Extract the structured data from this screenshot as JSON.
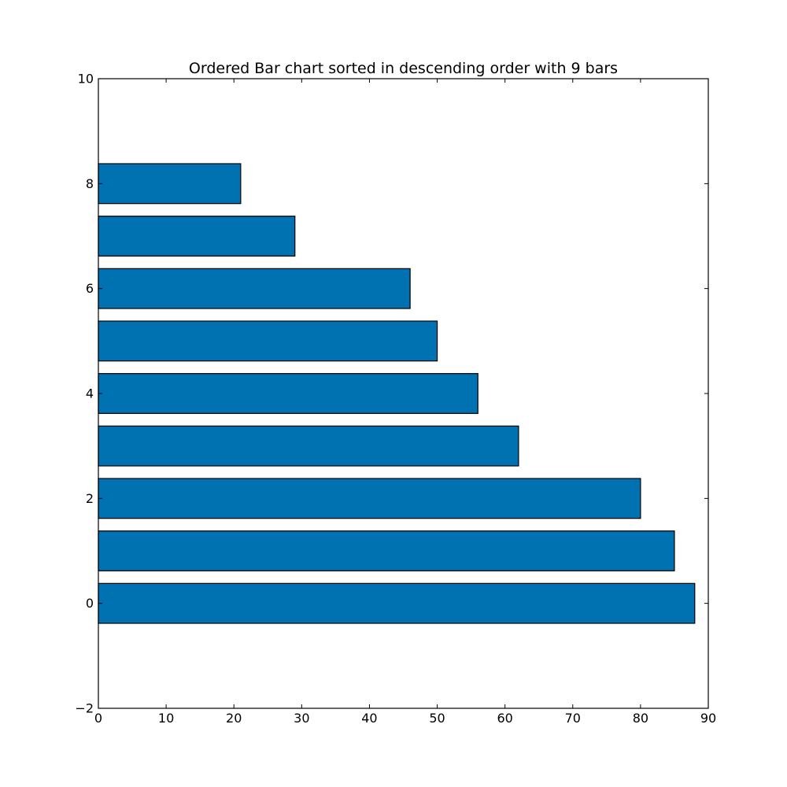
{
  "chart_data": {
    "type": "bar",
    "orientation": "horizontal",
    "title": "Ordered Bar chart sorted in descending order with 9 bars",
    "xlabel": "",
    "ylabel": "",
    "xlim": [
      0,
      90
    ],
    "ylim": [
      -2,
      10
    ],
    "bar_height": 0.76,
    "bar_color": "#0072b2",
    "edge_color": "#000000",
    "grid": false,
    "y_positions": [
      0,
      1,
      2,
      3,
      4,
      5,
      6,
      7,
      8
    ],
    "values": [
      88,
      85,
      80,
      62,
      56,
      50,
      46,
      29,
      21
    ],
    "x_ticks": [
      0,
      10,
      20,
      30,
      40,
      50,
      60,
      70,
      80,
      90
    ],
    "x_tick_labels": [
      "0",
      "10",
      "20",
      "30",
      "40",
      "50",
      "60",
      "70",
      "80",
      "90"
    ],
    "y_ticks": [
      -2,
      0,
      2,
      4,
      6,
      8,
      10
    ],
    "y_tick_labels": [
      "−2",
      "0",
      "2",
      "4",
      "6",
      "8",
      "10"
    ]
  }
}
